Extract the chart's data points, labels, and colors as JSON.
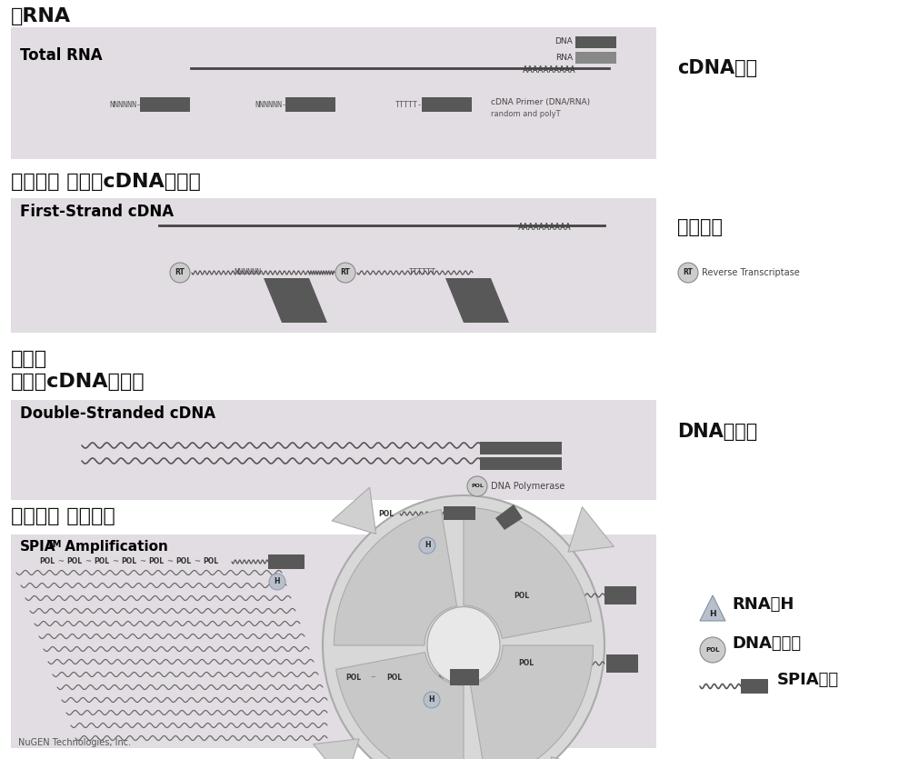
{
  "bg_color": "#ffffff",
  "panel_bg_light": "#e8e8e8",
  "panel_bg_grad_top": "#d8d8d8",
  "dark_bar": "#585858",
  "mid_gray": "#999999",
  "light_gray": "#cccccc",
  "section1_title": "总RNA",
  "section2_title": "第一步： 第一链cDNA的合成",
  "section3_title_a": "第二步",
  "section3_title_b": "第二链cDNA的合成",
  "section4_title": "第三步： 扩增步骤",
  "panel1_label": "Total RNA",
  "panel2_label": "First-Strand cDNA",
  "panel3_label": "Double-Stranded cDNA",
  "panel4_label": "SPIA",
  "panel4_tm": "TM",
  "panel4_amp": " Amplification",
  "right1": "cDNA引物",
  "right2": "逆转录鉦",
  "right3": "DNA聚合鉦",
  "right4a": "RNA鉦H",
  "right4b": "DNA聚合鉦",
  "right4c": "SPIA引物",
  "legend1_dna": "DNA",
  "legend1_rna": "RNA",
  "rt_legend": "Reverse Transcriptase",
  "pol_legend": "DNA Polymerase",
  "cdna_primer_label": "cDNA Primer (DNA/RNA)",
  "cdna_primer_sub": "random and polyT",
  "nugen": "NuGEN Technologies, Inc."
}
